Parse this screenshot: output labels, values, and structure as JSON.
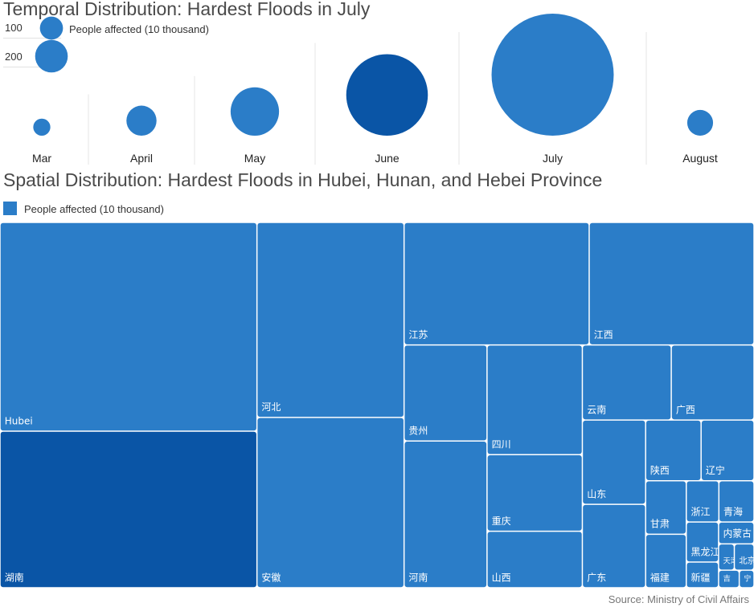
{
  "chart_data": [
    {
      "type": "scatter",
      "title": "Temporal Distribution: Hardest Floods in July",
      "size_legend": {
        "label": "People affected (10 thousand)",
        "entries": [
          100,
          200
        ]
      },
      "categories": [
        "Mar",
        "April",
        "May",
        "June",
        "July",
        "August"
      ],
      "values": [
        55,
        170,
        440,
        1250,
        2800,
        125
      ],
      "highlight": "June"
    },
    {
      "type": "treemap",
      "title": "Spatial Distribution: Hardest Floods in Hubei, Hunan, and Hebei Province",
      "legend": "People affected (10 thousand)",
      "categories": [
        "Hubei",
        "湖南",
        "河北",
        "安徽",
        "江苏",
        "江西",
        "贵州",
        "河南",
        "四川",
        "重庆",
        "山西",
        "云南",
        "广西",
        "山东",
        "广东",
        "陕西",
        "辽宁",
        "甘肃",
        "福建",
        "浙江",
        "青海",
        "黑龙江",
        "新疆",
        "内蒙古",
        "天津",
        "北京",
        "吉",
        "宁"
      ],
      "values": [
        1036,
        777,
        554,
        484,
        438,
        390,
        154,
        235,
        202,
        141,
        104,
        129,
        120,
        103,
        102,
        65,
        62,
        42,
        42,
        26,
        28,
        25,
        16,
        15,
        8,
        10,
        7,
        5
      ],
      "highlight": "湖南"
    }
  ],
  "colors": {
    "primary": "#2b7dc8",
    "highlight": "#0a55a6"
  },
  "footer": {
    "source": "Source: Ministry of Civil Affairs"
  }
}
